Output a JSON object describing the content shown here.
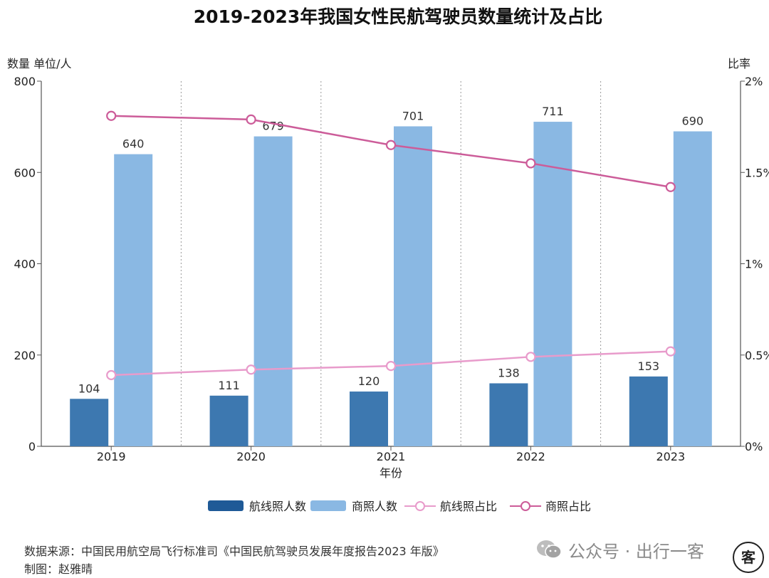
{
  "chart_data": {
    "type": "bar",
    "title": "2019-2023年我国女性民航驾驶员数量统计及占比",
    "xlabel": "年份",
    "ylabel_left": "数量 单位/人",
    "ylabel_right": "比率",
    "categories": [
      "2019",
      "2020",
      "2021",
      "2022",
      "2023"
    ],
    "ylim_left": [
      0,
      800
    ],
    "yticks_left": [
      "0",
      "200",
      "400",
      "600",
      "800"
    ],
    "ylim_right": [
      0,
      2
    ],
    "yticks_right": [
      "0%",
      "0.5%",
      "1%",
      "1.5%",
      "2%"
    ],
    "series": [
      {
        "name": "航线照人数",
        "type": "bar",
        "axis": "left",
        "color": "#3d78b0",
        "values": [
          104,
          111,
          120,
          138,
          153
        ],
        "labels": [
          "104",
          "111",
          "120",
          "138",
          "153"
        ]
      },
      {
        "name": "商照人数",
        "type": "bar",
        "axis": "left",
        "color": "#8ab8e3",
        "values": [
          640,
          679,
          701,
          711,
          690
        ],
        "labels": [
          "640",
          "679",
          "701",
          "711",
          "690"
        ]
      },
      {
        "name": "航线照占比",
        "type": "line",
        "axis": "right",
        "color": "#e89bcb",
        "values": [
          0.39,
          0.42,
          0.44,
          0.49,
          0.52
        ]
      },
      {
        "name": "商照占比",
        "type": "line",
        "axis": "right",
        "color": "#cc5c99",
        "values": [
          1.81,
          1.79,
          1.65,
          1.55,
          1.42
        ]
      }
    ],
    "legend_position": "bottom",
    "grid": "vertical-dotted"
  },
  "footer": {
    "source": "数据来源：中国民用航空局飞行标准司《中国民航驾驶员发展年度报告2023 年版》",
    "author": "制图：赵雅晴"
  },
  "watermark": {
    "text": "公众号 · 出行一客",
    "badge": "客",
    "icon": "wechat-icon"
  }
}
